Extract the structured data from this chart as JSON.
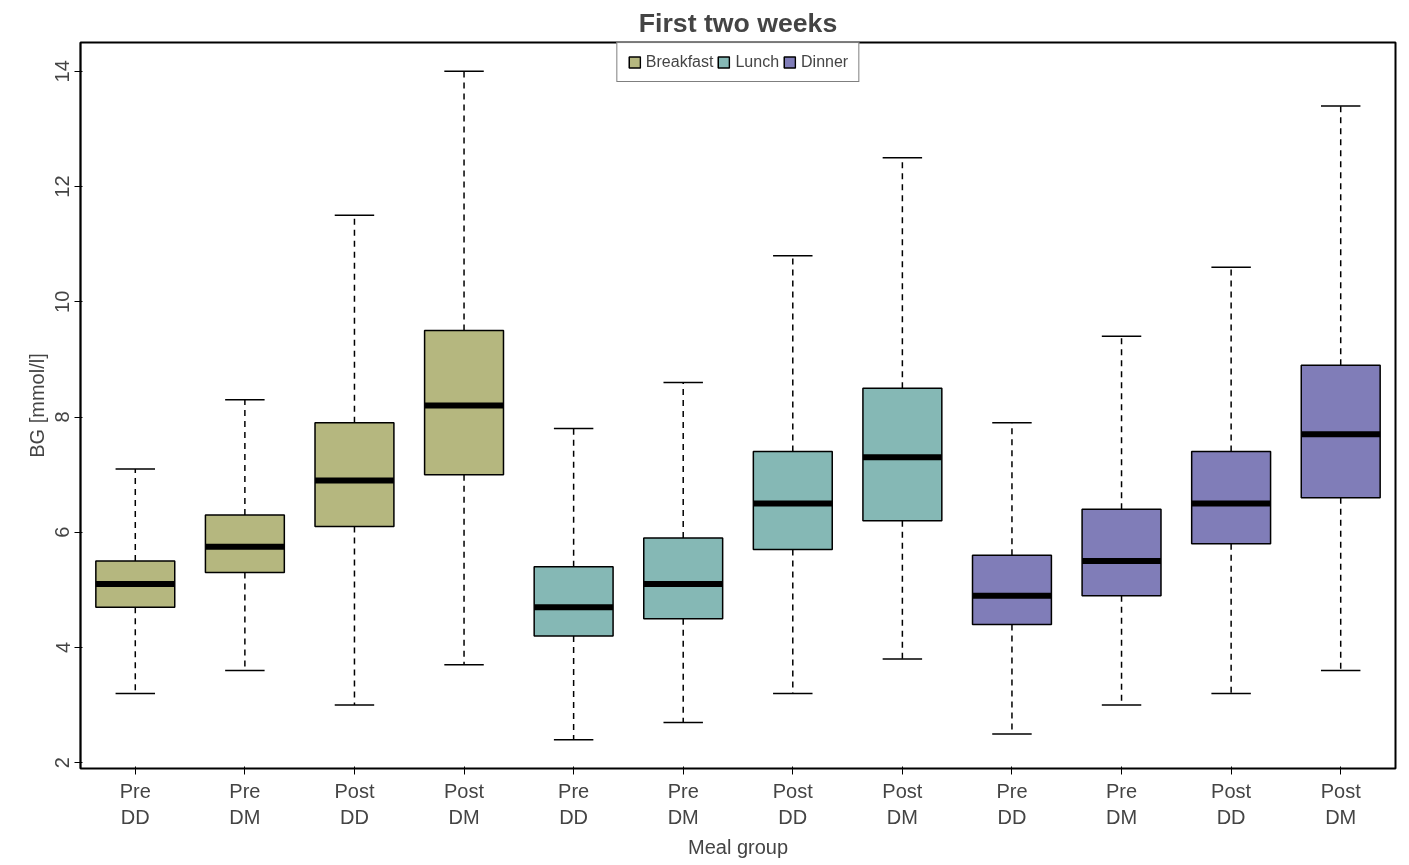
{
  "chart_data": {
    "type": "box",
    "title": "First two weeks",
    "xlabel": "Meal group",
    "ylabel": "BG [mmol/l]",
    "categories": [
      "Pre DD",
      "Pre DM",
      "Post DD",
      "Post DM",
      "Pre DD",
      "Pre DM",
      "Post DD",
      "Post DM",
      "Pre DD",
      "Pre DM",
      "Post DD",
      "Post DM"
    ],
    "ylim": [
      1.9,
      14.5
    ],
    "yticks": [
      2,
      4,
      6,
      8,
      10,
      12,
      14
    ],
    "grid": false,
    "legend": "top",
    "series": [
      {
        "name": "Breakfast",
        "color": "#b5b77f",
        "boxes": [
          {
            "low": 3.2,
            "q1": 4.7,
            "median": 5.1,
            "q3": 5.5,
            "high": 7.1
          },
          {
            "low": 3.6,
            "q1": 5.3,
            "median": 5.75,
            "q3": 6.3,
            "high": 8.3
          },
          {
            "low": 3.0,
            "q1": 6.1,
            "median": 6.9,
            "q3": 7.9,
            "high": 11.5
          },
          {
            "low": 3.7,
            "q1": 7.0,
            "median": 8.2,
            "q3": 9.5,
            "high": 14.0
          },
          null,
          null,
          null,
          null,
          null,
          null,
          null,
          null
        ]
      },
      {
        "name": "Lunch",
        "color": "#85b8b5",
        "boxes": [
          null,
          null,
          null,
          null,
          {
            "low": 2.4,
            "q1": 4.2,
            "median": 4.7,
            "q3": 5.4,
            "high": 7.8
          },
          {
            "low": 2.7,
            "q1": 4.5,
            "median": 5.1,
            "q3": 5.9,
            "high": 8.6
          },
          {
            "low": 3.2,
            "q1": 5.7,
            "median": 6.5,
            "q3": 7.4,
            "high": 10.8
          },
          {
            "low": 3.8,
            "q1": 6.2,
            "median": 7.3,
            "q3": 8.5,
            "high": 12.5
          },
          null,
          null,
          null,
          null
        ]
      },
      {
        "name": "Dinner",
        "color": "#807db8",
        "boxes": [
          null,
          null,
          null,
          null,
          null,
          null,
          null,
          null,
          {
            "low": 2.5,
            "q1": 4.4,
            "median": 4.9,
            "q3": 5.6,
            "high": 7.9
          },
          {
            "low": 3.0,
            "q1": 4.9,
            "median": 5.5,
            "q3": 6.4,
            "high": 9.4
          },
          {
            "low": 3.2,
            "q1": 5.8,
            "median": 6.5,
            "q3": 7.4,
            "high": 10.6
          },
          {
            "low": 3.6,
            "q1": 6.6,
            "median": 7.7,
            "q3": 8.9,
            "high": 13.4
          }
        ]
      }
    ]
  }
}
